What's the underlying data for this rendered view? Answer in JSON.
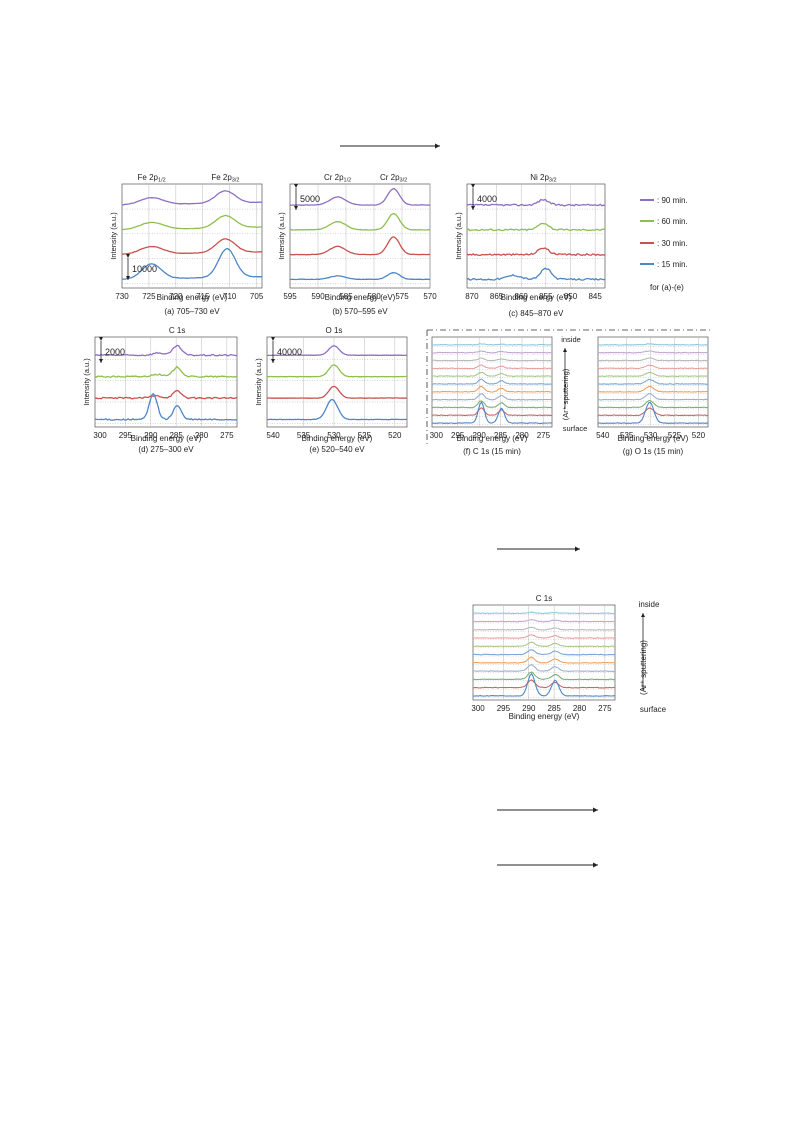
{
  "colors": {
    "t90": "#8e6fc4",
    "t60": "#8fbf4d",
    "t30": "#c9504e",
    "t15": "#4f86c6"
  },
  "legend": {
    "items": [
      {
        "label": ": 90 min.",
        "color": "#8e6fc4"
      },
      {
        "label": ": 60 min.",
        "color": "#8fbf4d"
      },
      {
        "label": ": 30 min.",
        "color": "#c9504e"
      },
      {
        "label": ": 15 min.",
        "color": "#4f86c6"
      }
    ],
    "note": "for (a)-(e)"
  },
  "depth": {
    "inside": "inside",
    "surface": "surface",
    "sputter": "(Ar⁺ sputtering)"
  },
  "chart_data": [
    {
      "id": "a",
      "type": "line",
      "caption": "(a) 705–730 eV",
      "xlabel": "Binding energy (eV)",
      "ylabel": "Intensity (a.u.)",
      "xlim": [
        730,
        704
      ],
      "xticks": [
        "730",
        "725",
        "720",
        "715",
        "710",
        "705"
      ],
      "peaks_text": [
        "Fe 2p1/2",
        "Fe 2p3/2"
      ],
      "scale_label": "10000",
      "series": [
        {
          "name": "90 min",
          "peaks": [
            {
              "x": 724.5,
              "a": 0.5,
              "w": 3
            },
            {
              "x": 710.8,
              "a": 0.9,
              "w": 2.5
            }
          ]
        },
        {
          "name": "60 min",
          "peaks": [
            {
              "x": 724.5,
              "a": 0.5,
              "w": 3
            },
            {
              "x": 710.8,
              "a": 0.9,
              "w": 2.5
            }
          ]
        },
        {
          "name": "30 min",
          "peaks": [
            {
              "x": 724.5,
              "a": 0.55,
              "w": 3
            },
            {
              "x": 710.8,
              "a": 1.0,
              "w": 2.5
            }
          ]
        },
        {
          "name": "15 min",
          "peaks": [
            {
              "x": 724.5,
              "a": 1.1,
              "w": 2.5
            },
            {
              "x": 710.5,
              "a": 2.1,
              "w": 2.2
            }
          ]
        }
      ]
    },
    {
      "id": "b",
      "type": "line",
      "caption": "(b) 570–595 eV",
      "xlabel": "Binding energy (eV)",
      "ylabel": "Intensity (a.u.)",
      "xlim": [
        595,
        570
      ],
      "xticks": [
        "595",
        "590",
        "585",
        "580",
        "575",
        "570"
      ],
      "peaks_text": [
        "Cr 2p1/2",
        "Cr 2p3/2"
      ],
      "scale_label": "5000",
      "series": [
        {
          "name": "90 min",
          "peaks": [
            {
              "x": 586.5,
              "a": 0.6,
              "w": 2
            },
            {
              "x": 576.5,
              "a": 1.2,
              "w": 1.5
            }
          ]
        },
        {
          "name": "60 min",
          "peaks": [
            {
              "x": 586.5,
              "a": 0.6,
              "w": 2
            },
            {
              "x": 576.5,
              "a": 1.2,
              "w": 1.5
            }
          ]
        },
        {
          "name": "30 min",
          "peaks": [
            {
              "x": 586.5,
              "a": 0.6,
              "w": 2
            },
            {
              "x": 576.5,
              "a": 1.3,
              "w": 1.5
            }
          ]
        },
        {
          "name": "15 min",
          "peaks": [
            {
              "x": 586.5,
              "a": 0.25,
              "w": 2
            },
            {
              "x": 576.5,
              "a": 0.5,
              "w": 1.5
            }
          ]
        }
      ]
    },
    {
      "id": "c",
      "type": "line",
      "caption": "(c) 845–870 eV",
      "xlabel": "Binding energy (eV)",
      "ylabel": "Intensity (a.u.)",
      "xlim": [
        871,
        843
      ],
      "xticks": [
        "870",
        "865",
        "860",
        "855",
        "850",
        "845"
      ],
      "peaks_text": [
        "Ni 2p3/2"
      ],
      "scale_label": "4000",
      "series": [
        {
          "name": "90 min",
          "peaks": [
            {
              "x": 855.5,
              "a": 0.4,
              "w": 1.5
            }
          ]
        },
        {
          "name": "60 min",
          "peaks": [
            {
              "x": 855.5,
              "a": 0.5,
              "w": 1.5
            }
          ]
        },
        {
          "name": "30 min",
          "peaks": [
            {
              "x": 855.5,
              "a": 0.5,
              "w": 1.5
            }
          ]
        },
        {
          "name": "15 min",
          "peaks": [
            {
              "x": 855.0,
              "a": 0.8,
              "w": 1.5
            },
            {
              "x": 861.5,
              "a": 0.3,
              "w": 2
            }
          ]
        }
      ]
    },
    {
      "id": "d",
      "type": "line",
      "caption": "(d) 275–300 eV",
      "xlabel": "Binding energy (eV)",
      "ylabel": "Intensity (a.u.)",
      "xlim": [
        301,
        273
      ],
      "xticks": [
        "300",
        "295",
        "290",
        "285",
        "280",
        "275"
      ],
      "peaks_text": [
        "C 1s"
      ],
      "scale_label": "2000",
      "series": [
        {
          "name": "90 min",
          "peaks": [
            {
              "x": 284.8,
              "a": 0.8,
              "w": 1.2
            },
            {
              "x": 288.5,
              "a": 0.2,
              "w": 1.5
            }
          ]
        },
        {
          "name": "60 min",
          "peaks": [
            {
              "x": 284.8,
              "a": 0.8,
              "w": 1.2
            },
            {
              "x": 288.8,
              "a": 0.2,
              "w": 1.5
            }
          ]
        },
        {
          "name": "30 min",
          "peaks": [
            {
              "x": 284.8,
              "a": 0.6,
              "w": 1.2
            },
            {
              "x": 289.0,
              "a": 0.2,
              "w": 1.5
            }
          ]
        },
        {
          "name": "15 min",
          "peaks": [
            {
              "x": 289.5,
              "a": 2.2,
              "w": 1.1
            },
            {
              "x": 284.8,
              "a": 1.2,
              "w": 1.1
            }
          ]
        }
      ]
    },
    {
      "id": "e",
      "type": "line",
      "caption": "(e) 520–540 eV",
      "xlabel": "Binding energy (eV)",
      "ylabel": "Intensity (a.u.)",
      "xlim": [
        541,
        518
      ],
      "xticks": [
        "540",
        "535",
        "530",
        "525",
        "520"
      ],
      "peaks_text": [
        "O 1s"
      ],
      "scale_label": "40000",
      "series": [
        {
          "name": "90 min",
          "peaks": [
            {
              "x": 530.0,
              "a": 0.8,
              "w": 1.2
            }
          ]
        },
        {
          "name": "60 min",
          "peaks": [
            {
              "x": 530.0,
              "a": 1.0,
              "w": 1.2
            }
          ]
        },
        {
          "name": "30 min",
          "peaks": [
            {
              "x": 530.0,
              "a": 1.0,
              "w": 1.2
            }
          ]
        },
        {
          "name": "15 min",
          "peaks": [
            {
              "x": 530.3,
              "a": 1.7,
              "w": 1.3
            }
          ]
        }
      ]
    },
    {
      "id": "f",
      "type": "line",
      "caption": "(f) C 1s (15 min)",
      "xlabel": "Binding energy (eV)",
      "xlim": [
        301,
        273
      ],
      "xticks": [
        "300",
        "295",
        "290",
        "285",
        "280",
        "275"
      ],
      "depth_profile": true,
      "n_traces": 11,
      "main_peaks": [
        {
          "x": 289.5,
          "w": 1.0
        },
        {
          "x": 284.8,
          "w": 1.0
        }
      ]
    },
    {
      "id": "g",
      "type": "line",
      "caption": "(g) O 1s (15 min)",
      "xlabel": "Binding energy (eV)",
      "xlim": [
        541,
        518
      ],
      "xticks": [
        "540",
        "535",
        "530",
        "525",
        "520"
      ],
      "depth_profile": true,
      "n_traces": 11,
      "main_peaks": [
        {
          "x": 530.2,
          "w": 1.2
        }
      ]
    },
    {
      "id": "h",
      "type": "line",
      "title": "C 1s",
      "xlabel": "Binding energy (eV)",
      "xlim": [
        301,
        273
      ],
      "xticks": [
        "300",
        "295",
        "290",
        "285",
        "280",
        "275"
      ],
      "depth_profile": true,
      "n_traces": 11,
      "main_peaks": [
        {
          "x": 289.5,
          "w": 1.0
        },
        {
          "x": 284.8,
          "w": 1.0
        }
      ]
    }
  ]
}
